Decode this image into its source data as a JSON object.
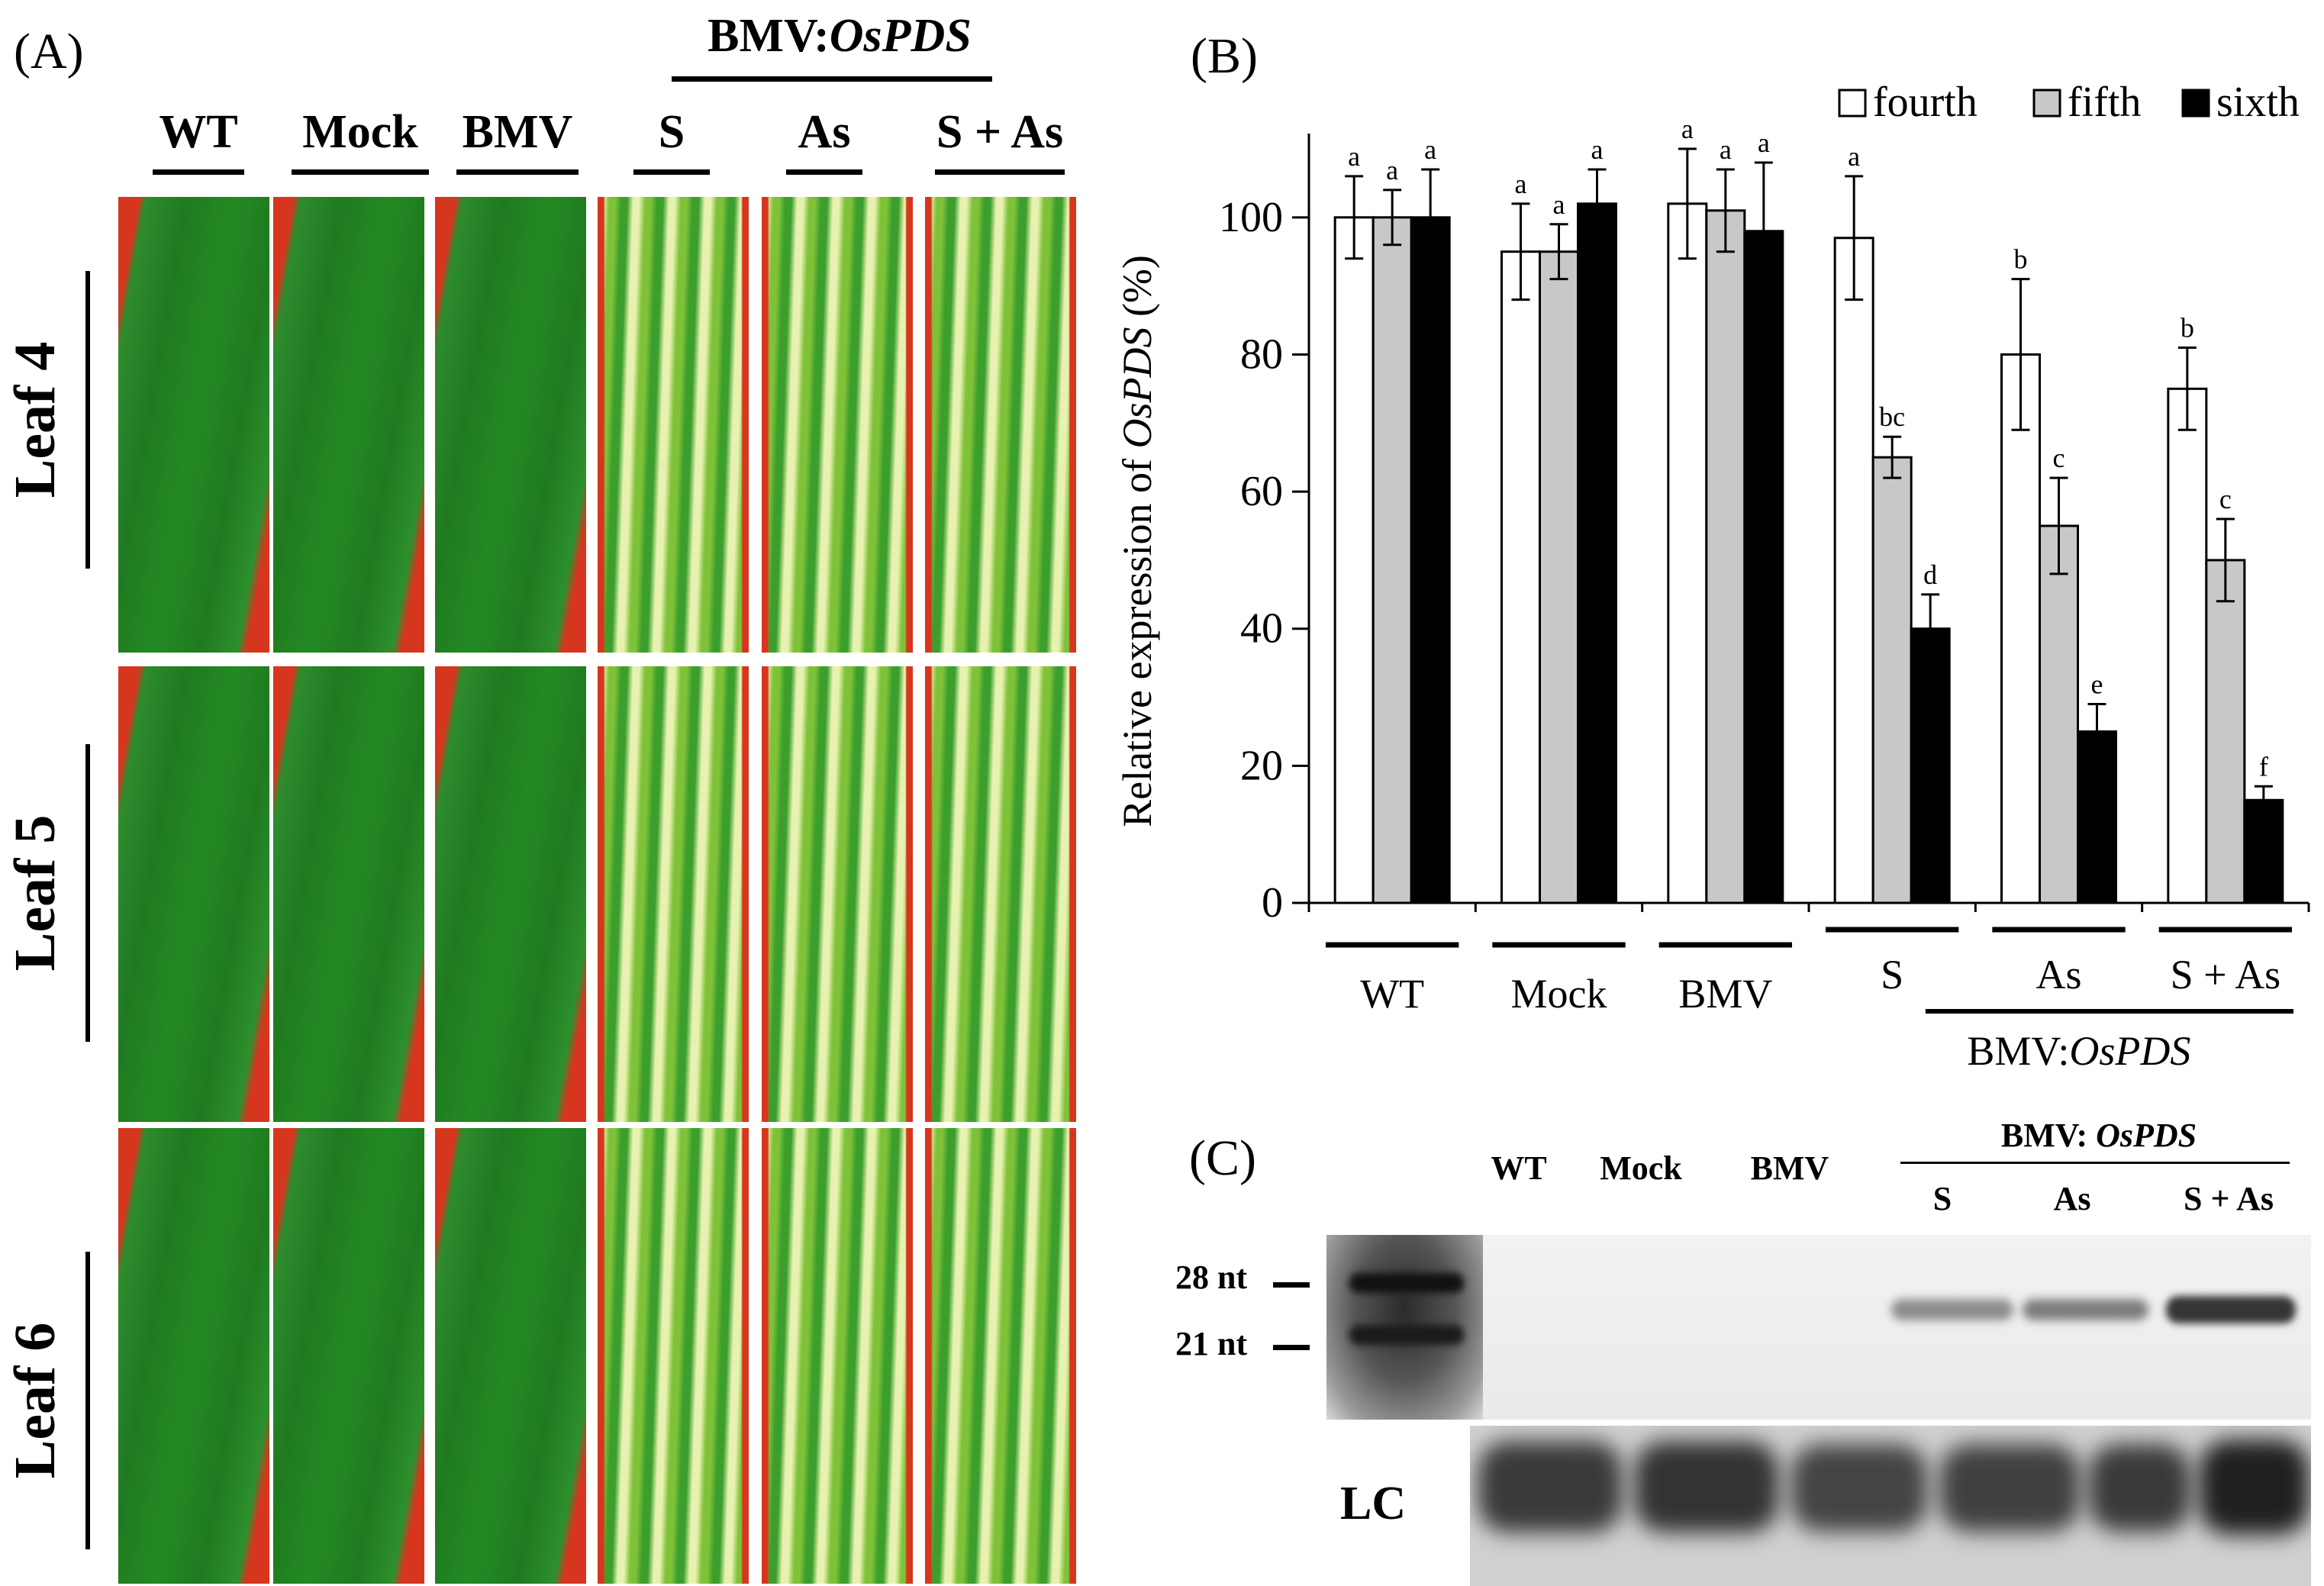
{
  "panel_a": {
    "label": "(A)",
    "group_header": {
      "prefix": "BMV:",
      "gene": "OsPDS"
    },
    "columns": [
      "WT",
      "Mock",
      "BMV",
      "S",
      "As",
      "S + As"
    ],
    "rows": [
      "Leaf 4",
      "Leaf 5",
      "Leaf 6"
    ],
    "colors": {
      "green": "#1f7a1f",
      "red": "#d7361e",
      "pale": "#e8f2b0"
    }
  },
  "panel_b": {
    "label": "(B)",
    "group_caption": {
      "prefix": "BMV:",
      "gene": "OsPDS"
    }
  },
  "chart_data": {
    "type": "bar",
    "title": "",
    "ylabel_prefix": "Relative expression of ",
    "ylabel_gene": "OsPDS",
    "ylabel_suffix": " (%)",
    "xlabel": "",
    "ylim": [
      0,
      110
    ],
    "yticks": [
      "0",
      "20",
      "40",
      "60",
      "80",
      "100"
    ],
    "categories": [
      "WT",
      "Mock",
      "BMV",
      "S",
      "As",
      "S + As"
    ],
    "series": [
      {
        "name": "fourth",
        "color": "#ffffff",
        "values": [
          100,
          95,
          102,
          97,
          80,
          75
        ],
        "errors": [
          6,
          7,
          8,
          9,
          11,
          6
        ],
        "letters": [
          "a",
          "a",
          "a",
          "a",
          "b",
          "b"
        ]
      },
      {
        "name": "fifth",
        "color": "#c8c8c8",
        "values": [
          100,
          95,
          101,
          65,
          55,
          50
        ],
        "errors": [
          4,
          4,
          6,
          3,
          7,
          6
        ],
        "letters": [
          "a",
          "a",
          "a",
          "bc",
          "c",
          "c"
        ]
      },
      {
        "name": "sixth",
        "color": "#000000",
        "values": [
          100,
          102,
          98,
          40,
          25,
          15
        ],
        "errors": [
          7,
          5,
          10,
          5,
          4,
          2
        ],
        "letters": [
          "a",
          "a",
          "a",
          "d",
          "e",
          "f"
        ]
      }
    ]
  },
  "panel_c": {
    "label": "(C)",
    "lanes": [
      "WT",
      "Mock",
      "BMV"
    ],
    "group_header": {
      "prefix": "BMV: ",
      "gene": "OsPDS"
    },
    "group_lanes": [
      "S",
      "As",
      "S + As"
    ],
    "markers": [
      "28 nt",
      "21 nt"
    ],
    "loading_control": "LC"
  }
}
